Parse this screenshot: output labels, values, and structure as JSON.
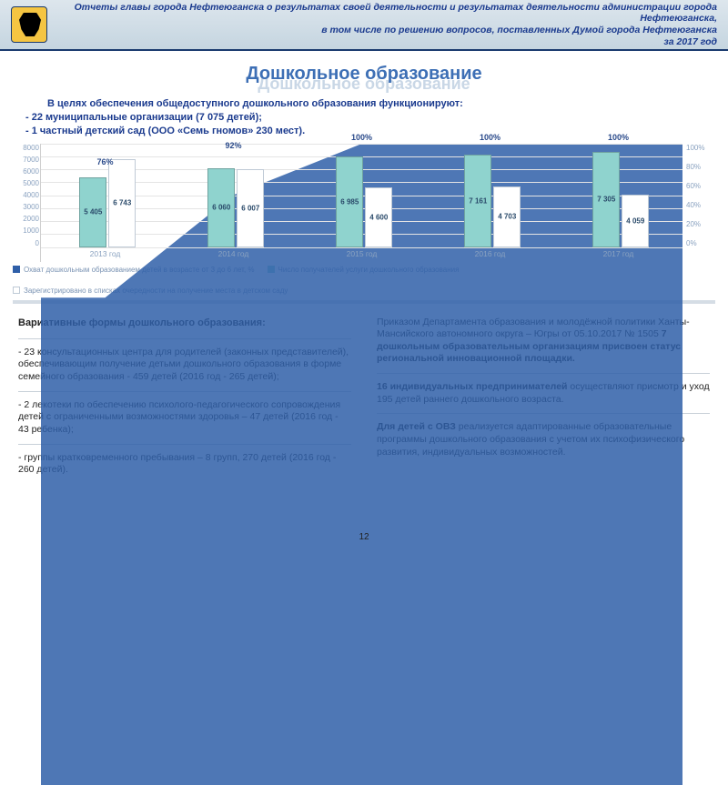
{
  "header": {
    "line1": "Отчеты главы города Нефтеюганска о результатах своей деятельности и результатах деятельности администрации города Нефтеюганска,",
    "line2": "в том числе по решению вопросов, поставленных Думой города Нефтеюганска",
    "line3": "за 2017 год"
  },
  "title": "Дошкольное образование",
  "title_shadow": "Дошкольное образование",
  "intro": {
    "line1": "В целях обеспечения общедоступного дошкольного образования функционируют:",
    "line2": "- 22 муниципальные организации (7 075 детей);",
    "line3": "- 1 частный детский сад (ООО «Семь гномов» 230 мест)."
  },
  "chart": {
    "type": "bar+area",
    "x_categories": [
      "2013 год",
      "2014 год",
      "2015 год",
      "2016 год",
      "2017 год"
    ],
    "series_bar1_color": "#8fd3ce",
    "series_bar2_color": "#ffffff",
    "series_area_color": "#2f5fa8",
    "y_left_ticks": [
      "8000",
      "7000",
      "6000",
      "5000",
      "4000",
      "3000",
      "2000",
      "1000",
      "0"
    ],
    "y_right_ticks": [
      "100%",
      "80%",
      "60%",
      "40%",
      "20%",
      "0%"
    ],
    "y_left_max": 8000,
    "bar1_values": [
      5405,
      6060,
      6985,
      7161,
      7305
    ],
    "bar2_values": [
      6743,
      6007,
      4600,
      4703,
      4059
    ],
    "area_pct": [
      76,
      92,
      100,
      100,
      100
    ],
    "pct_labels": [
      "76%",
      "92%",
      "100%",
      "100%",
      "100%"
    ],
    "bar1_labels": [
      "5 405",
      "6 060",
      "6 985",
      "7 161",
      "7 305"
    ],
    "bar2_labels": [
      "6 743",
      "6 007",
      "4 600",
      "4 703",
      "4 059"
    ],
    "background": "#ffffff",
    "grid_color": "#e4e4e4"
  },
  "legend": {
    "s1": "Охват дошкольным образованием детей в возрасте от 3 до 6 лет, %",
    "s2": "Число получателей услуги дошкольного образования",
    "s3": "Зарегистрировано в списках очередности на получение места в детском саду",
    "c1": "#2f5fa8",
    "c2": "#8fd3ce",
    "c3": "#ffffff"
  },
  "left_col": {
    "heading": "Вариативные формы дошкольного образования:",
    "p1": "- 23 консультационных центра для родителей (законных представителей), обеспечивающим получение детьми дошкольного образования в форме семейного образования - 459 детей (2016 год - 265 детей);",
    "p2": "- 2 лекотеки по обеспечению психолого-педагогического сопровождения детей с ограниченными возможностями здоровья – 47 детей (2016 год - 43 ребенка);",
    "p3": "- группы кратковременного пребывания – 8 групп, 270 детей (2016 год - 260 детей)."
  },
  "right_col": {
    "p1a": "Приказом Департамента образования и молодёжной политики Ханты-Мансийского автономного округа – Югры от 05.10.2017 № 1505 ",
    "p1b": "7 дошкольным образовательным организациям присвоен статус региональной инновационной площадки.",
    "p2a": "16 индивидуальных предпринимателей",
    "p2b": " осуществляют присмотр и уход 195 детей раннего дошкольного возраста.",
    "p3a": "Для детей с ОВЗ",
    "p3b": " реализуется адаптированные образовательные программы дошкольного образования с учетом их психофизического развития, индивидуальных возможностей."
  },
  "page_number": "12"
}
